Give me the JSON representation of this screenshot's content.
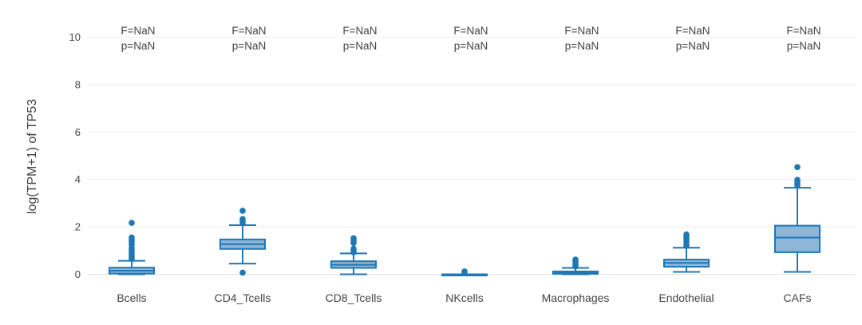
{
  "chart_data": {
    "type": "box",
    "ylabel": "log(TPM+1) of TP53",
    "xlabel": "",
    "ylim": [
      -0.15,
      10.3
    ],
    "yticks": [
      0,
      2,
      4,
      6,
      8,
      10
    ],
    "grid": true,
    "color": "#1f77b4",
    "box_fill": "#8eb6d8",
    "categories": [
      "Bcells",
      "CD4_Tcells",
      "CD8_Tcells",
      "NKcells",
      "Macrophages",
      "Endothelial",
      "CAFs"
    ],
    "boxes": [
      {
        "name": "Bcells",
        "min": 0.0,
        "q1": 0.03,
        "median": 0.15,
        "q3": 0.28,
        "max": 0.57,
        "outliers": [
          0.65,
          0.72,
          0.8,
          0.9,
          1.0,
          1.1,
          1.25,
          1.35,
          1.45,
          1.55,
          2.17
        ]
      },
      {
        "name": "CD4_Tcells",
        "min": 0.45,
        "q1": 1.07,
        "median": 1.27,
        "q3": 1.47,
        "max": 2.07,
        "outliers": [
          0.07,
          2.17,
          2.25,
          2.33,
          2.68
        ]
      },
      {
        "name": "CD8_Tcells",
        "min": 0.0,
        "q1": 0.27,
        "median": 0.4,
        "q3": 0.55,
        "max": 0.88,
        "outliers": [
          0.93,
          1.0,
          1.08,
          1.32,
          1.42,
          1.52
        ]
      },
      {
        "name": "NKcells",
        "min": 0.0,
        "q1": 0.0,
        "median": 0.0,
        "q3": 0.0,
        "max": 0.0,
        "outliers": [
          0.05,
          0.12
        ]
      },
      {
        "name": "Macrophages",
        "min": 0.0,
        "q1": 0.02,
        "median": 0.05,
        "q3": 0.12,
        "max": 0.27,
        "outliers": [
          0.33,
          0.4,
          0.48,
          0.55,
          0.62
        ]
      },
      {
        "name": "Endothelial",
        "min": 0.1,
        "q1": 0.32,
        "median": 0.48,
        "q3": 0.62,
        "max": 1.12,
        "outliers": [
          1.2,
          1.3,
          1.4,
          1.5,
          1.6,
          1.68
        ]
      },
      {
        "name": "CAFs",
        "min": 0.1,
        "q1": 0.93,
        "median": 1.55,
        "q3": 2.05,
        "max": 3.65,
        "outliers": [
          3.75,
          3.85,
          3.92,
          3.98,
          4.52
        ]
      }
    ],
    "annotations": [
      {
        "line1": "F=NaN",
        "line2": "p=NaN"
      },
      {
        "line1": "F=NaN",
        "line2": "p=NaN"
      },
      {
        "line1": "F=NaN",
        "line2": "p=NaN"
      },
      {
        "line1": "F=NaN",
        "line2": "p=NaN"
      },
      {
        "line1": "F=NaN",
        "line2": "p=NaN"
      },
      {
        "line1": "F=NaN",
        "line2": "p=NaN"
      },
      {
        "line1": "F=NaN",
        "line2": "p=NaN"
      }
    ]
  }
}
